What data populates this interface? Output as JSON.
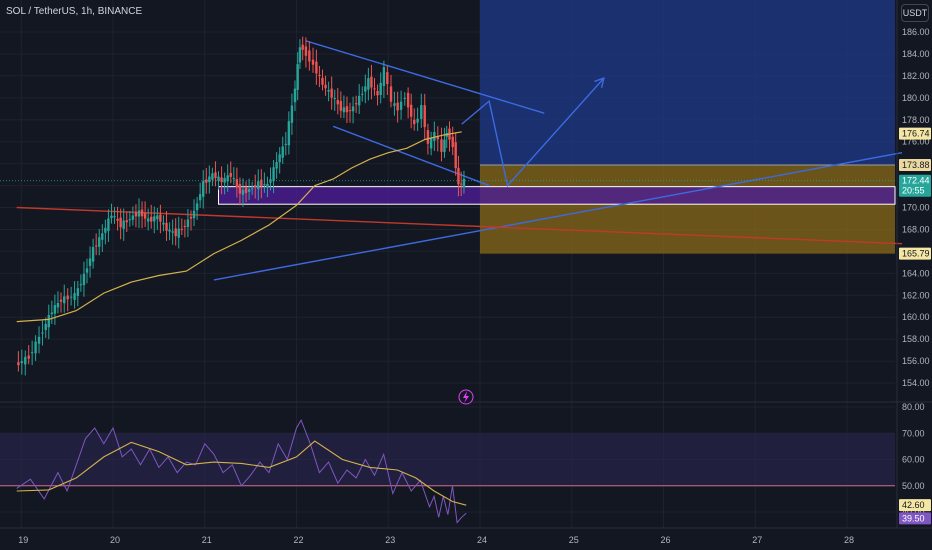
{
  "header": {
    "symbol_title": "SOL / TetherUS, 1h, BINANCE",
    "currency": "USDT"
  },
  "colors": {
    "background": "#131722",
    "up_candle": "#26a69a",
    "down_candle": "#ef5350",
    "ma_line": "#d4b24c",
    "trendline": "#3d6ae0",
    "target_zone": "#1e3a8a",
    "stop_zone": "#8a6a17",
    "support_box": "#4c1d95",
    "rsi_line": "#7e57c2",
    "rsi_ma": "#d4b24c",
    "rsi_band": "#2a2450"
  },
  "chart_data": [
    {
      "type": "candlestick",
      "title": "SOL / TetherUS, 1h, BINANCE",
      "y_axis_ticks": [
        "186.00",
        "184.00",
        "182.00",
        "180.00",
        "178.00",
        "176.00",
        "174.00",
        "172.00",
        "170.00",
        "168.00",
        "166.00",
        "164.00",
        "162.00",
        "160.00",
        "158.00",
        "156.00",
        "154.00"
      ],
      "ylim": [
        152.5,
        188.5
      ],
      "x_axis_ticks": [
        "19",
        "20",
        "21",
        "22",
        "23",
        "24",
        "25",
        "26",
        "27",
        "28"
      ],
      "xlim": [
        18.95,
        28.6
      ],
      "price_labels": {
        "target": "176.74",
        "entry": "173.88",
        "current_price": "172.44",
        "countdown": "20:55",
        "stop": "165.79"
      },
      "key_levels": {
        "target": 176.74,
        "entry": 173.88,
        "current_price": 172.44,
        "stop": 165.79
      },
      "support_zone": [
        170.3,
        171.9
      ],
      "position_time_range": [
        24.0,
        28.6
      ],
      "close_path": [
        [
          18.95,
          155.6
        ],
        [
          19.1,
          156.4
        ],
        [
          19.25,
          158.8
        ],
        [
          19.35,
          160.6
        ],
        [
          19.45,
          161.6
        ],
        [
          19.6,
          162.0
        ],
        [
          19.7,
          163.8
        ],
        [
          19.8,
          166.2
        ],
        [
          19.9,
          167.6
        ],
        [
          20.0,
          169.4
        ],
        [
          20.1,
          168.4
        ],
        [
          20.2,
          169.0
        ],
        [
          20.3,
          169.6
        ],
        [
          20.4,
          168.8
        ],
        [
          20.5,
          169.2
        ],
        [
          20.6,
          168.0
        ],
        [
          20.7,
          167.6
        ],
        [
          20.8,
          168.4
        ],
        [
          20.9,
          169.6
        ],
        [
          21.0,
          172.2
        ],
        [
          21.1,
          173.0
        ],
        [
          21.2,
          172.4
        ],
        [
          21.3,
          173.0
        ],
        [
          21.4,
          171.4
        ],
        [
          21.5,
          171.6
        ],
        [
          21.6,
          172.2
        ],
        [
          21.7,
          172.0
        ],
        [
          21.8,
          174.2
        ],
        [
          21.9,
          176.0
        ],
        [
          22.0,
          181.0
        ],
        [
          22.05,
          184.8
        ],
        [
          22.12,
          184.0
        ],
        [
          22.2,
          183.0
        ],
        [
          22.3,
          181.2
        ],
        [
          22.4,
          180.2
        ],
        [
          22.5,
          179.0
        ],
        [
          22.6,
          178.8
        ],
        [
          22.7,
          180.0
        ],
        [
          22.8,
          181.6
        ],
        [
          22.9,
          180.2
        ],
        [
          22.97,
          182.6
        ],
        [
          23.05,
          179.6
        ],
        [
          23.12,
          179.0
        ],
        [
          23.2,
          180.2
        ],
        [
          23.3,
          177.4
        ],
        [
          23.38,
          179.2
        ],
        [
          23.45,
          175.6
        ],
        [
          23.52,
          176.8
        ],
        [
          23.6,
          175.2
        ],
        [
          23.65,
          177.0
        ],
        [
          23.72,
          175.6
        ],
        [
          23.78,
          172.0
        ],
        [
          23.84,
          172.4
        ]
      ],
      "ma_path": [
        [
          18.95,
          159.6
        ],
        [
          19.3,
          159.8
        ],
        [
          19.6,
          160.6
        ],
        [
          19.9,
          162.2
        ],
        [
          20.2,
          163.2
        ],
        [
          20.5,
          163.8
        ],
        [
          20.8,
          164.2
        ],
        [
          21.1,
          165.8
        ],
        [
          21.4,
          167.0
        ],
        [
          21.7,
          168.4
        ],
        [
          22.0,
          170.2
        ],
        [
          22.2,
          172.0
        ],
        [
          22.4,
          172.6
        ],
        [
          22.6,
          173.6
        ],
        [
          22.8,
          174.4
        ],
        [
          23.0,
          175.0
        ],
        [
          23.2,
          175.4
        ],
        [
          23.4,
          176.2
        ],
        [
          23.6,
          176.6
        ],
        [
          23.8,
          176.9
        ]
      ],
      "trendlines": [
        {
          "from": [
            21.1,
            163.4
          ],
          "to": [
            28.6,
            175.0
          ]
        },
        {
          "from": [
            22.1,
            185.2
          ],
          "to": [
            24.7,
            178.6
          ]
        },
        {
          "from": [
            22.4,
            177.4
          ],
          "to": [
            24.1,
            172.0
          ]
        },
        {
          "from": [
            18.95,
            170.0
          ],
          "to": [
            28.6,
            166.7
          ]
        }
      ],
      "projection_path": [
        [
          23.8,
          177.6
        ],
        [
          24.1,
          179.7
        ],
        [
          24.3,
          172.0
        ],
        [
          25.35,
          181.8
        ]
      ]
    },
    {
      "type": "line",
      "title": "RSI",
      "y_axis_ticks": [
        "80.00",
        "70.00",
        "60.00",
        "50.00",
        "40.00"
      ],
      "ylim": [
        34.0,
        80.0
      ],
      "band": [
        50.0,
        70.0
      ],
      "midline": 50.0,
      "labels": {
        "rsi_ma": "42.60",
        "rsi": "39.50"
      },
      "rsi_path": [
        [
          18.95,
          49.0
        ],
        [
          19.1,
          52.5
        ],
        [
          19.25,
          45.0
        ],
        [
          19.4,
          55.0
        ],
        [
          19.5,
          48.0
        ],
        [
          19.6,
          58.0
        ],
        [
          19.7,
          68.0
        ],
        [
          19.8,
          72.0
        ],
        [
          19.9,
          66.0
        ],
        [
          20.0,
          72.0
        ],
        [
          20.1,
          61.0
        ],
        [
          20.2,
          64.0
        ],
        [
          20.3,
          58.0
        ],
        [
          20.4,
          64.0
        ],
        [
          20.5,
          57.0
        ],
        [
          20.6,
          61.0
        ],
        [
          20.7,
          55.0
        ],
        [
          20.8,
          59.0
        ],
        [
          20.9,
          58.0
        ],
        [
          21.0,
          66.0
        ],
        [
          21.1,
          62.0
        ],
        [
          21.2,
          55.0
        ],
        [
          21.3,
          58.0
        ],
        [
          21.4,
          50.0
        ],
        [
          21.5,
          54.0
        ],
        [
          21.6,
          59.0
        ],
        [
          21.7,
          55.0
        ],
        [
          21.8,
          66.0
        ],
        [
          21.9,
          60.0
        ],
        [
          22.0,
          72.0
        ],
        [
          22.05,
          75.0
        ],
        [
          22.15,
          66.0
        ],
        [
          22.25,
          55.0
        ],
        [
          22.35,
          59.0
        ],
        [
          22.45,
          51.0
        ],
        [
          22.55,
          56.0
        ],
        [
          22.65,
          53.0
        ],
        [
          22.75,
          60.0
        ],
        [
          22.85,
          54.0
        ],
        [
          22.95,
          62.0
        ],
        [
          23.05,
          47.0
        ],
        [
          23.15,
          55.0
        ],
        [
          23.25,
          48.0
        ],
        [
          23.35,
          52.0
        ],
        [
          23.45,
          42.0
        ],
        [
          23.5,
          46.0
        ],
        [
          23.55,
          38.0
        ],
        [
          23.6,
          46.0
        ],
        [
          23.65,
          39.0
        ],
        [
          23.7,
          50.0
        ],
        [
          23.75,
          36.0
        ],
        [
          23.8,
          38.0
        ],
        [
          23.85,
          39.5
        ]
      ],
      "rsi_ma_path": [
        [
          18.95,
          48.0
        ],
        [
          19.3,
          48.4
        ],
        [
          19.6,
          53.0
        ],
        [
          19.9,
          61.0
        ],
        [
          20.2,
          66.5
        ],
        [
          20.5,
          63.0
        ],
        [
          20.8,
          58.0
        ],
        [
          21.1,
          59.0
        ],
        [
          21.4,
          58.5
        ],
        [
          21.7,
          57.0
        ],
        [
          22.0,
          61.0
        ],
        [
          22.2,
          67.0
        ],
        [
          22.5,
          60.0
        ],
        [
          22.8,
          57.0
        ],
        [
          23.1,
          56.0
        ],
        [
          23.3,
          53.0
        ],
        [
          23.5,
          48.0
        ],
        [
          23.7,
          44.0
        ],
        [
          23.85,
          42.6
        ]
      ]
    }
  ]
}
